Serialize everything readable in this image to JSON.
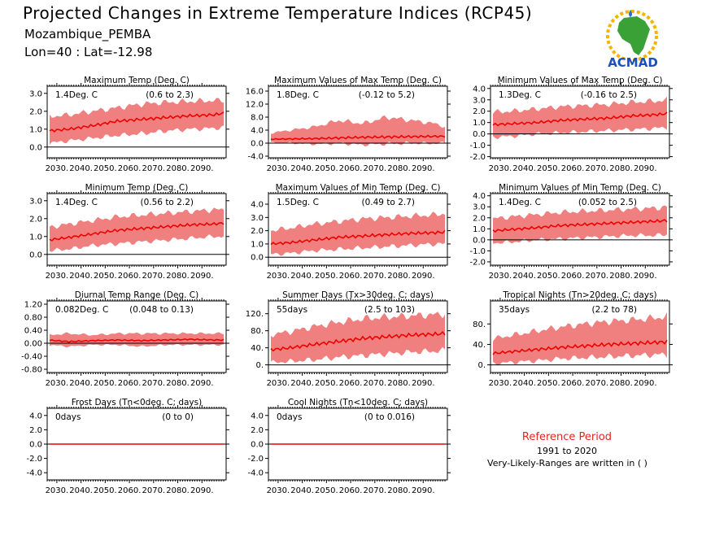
{
  "header": {
    "title": "Projected Changes in Extreme Temperature Indices (RCP45)",
    "region": "Mozambique_PEMBA",
    "coords": "Lon=40 : Lat=-12.98"
  },
  "logo": {
    "text": "ACMAD",
    "icon": "africa-map-logo"
  },
  "reference": {
    "title": "Reference Period",
    "years": "1991 to 2020",
    "note": "Very-Likely-Ranges are written in ( )"
  },
  "colors": {
    "band": "#f08080",
    "line": "#ee0000",
    "zero_line": "#000000"
  },
  "chart_data": [
    {
      "id": "txx",
      "type": "area",
      "title": "Maximum Temp (Deg. C)",
      "value_label": "1.4Deg. C",
      "range_label": "(0.6 to 2.3)",
      "x_ticks": [
        "2030.",
        "2040.",
        "2050.",
        "2060.",
        "2070.",
        "2080.",
        "2090."
      ],
      "xlim": [
        2026,
        2100
      ],
      "ylim": [
        -0.6,
        3.4
      ],
      "y_ticks": [
        "0.0",
        "1.0",
        "2.0",
        "3.0"
      ],
      "y_tick_values": [
        0,
        1,
        2,
        3
      ],
      "series": [
        {
          "role": "median",
          "x": [
            2026,
            2035,
            2045,
            2055,
            2065,
            2075,
            2085,
            2095,
            2099
          ],
          "y": [
            0.9,
            1.0,
            1.2,
            1.45,
            1.55,
            1.65,
            1.75,
            1.8,
            1.9
          ]
        },
        {
          "role": "lower",
          "x": [
            2026,
            2035,
            2045,
            2055,
            2065,
            2075,
            2085,
            2095,
            2099
          ],
          "y": [
            0.2,
            0.35,
            0.5,
            0.65,
            0.75,
            0.9,
            1.0,
            1.05,
            1.1
          ]
        },
        {
          "role": "upper",
          "x": [
            2026,
            2035,
            2045,
            2055,
            2065,
            2075,
            2085,
            2095,
            2099
          ],
          "y": [
            1.7,
            1.8,
            2.0,
            2.2,
            2.4,
            2.5,
            2.55,
            2.6,
            2.6
          ]
        }
      ]
    },
    {
      "id": "txx2",
      "type": "area",
      "title": "Maximum Values of Max Temp (Deg. C)",
      "value_label": "1.8Deg. C",
      "range_label": "(-0.12 to 5.2)",
      "x_ticks": [
        "2030.",
        "2040.",
        "2050.",
        "2060.",
        "2070.",
        "2080.",
        "2090."
      ],
      "xlim": [
        2026,
        2100
      ],
      "ylim": [
        -4.5,
        17.5
      ],
      "y_ticks": [
        "-4.0",
        "0.0",
        "4.0",
        "8.0",
        "12.0",
        "16.0"
      ],
      "y_tick_values": [
        -4,
        0,
        4,
        8,
        12,
        16
      ],
      "series": [
        {
          "role": "median",
          "x": [
            2026,
            2035,
            2045,
            2055,
            2065,
            2075,
            2085,
            2095,
            2099
          ],
          "y": [
            1.2,
            1.3,
            1.4,
            1.6,
            1.8,
            1.9,
            2.0,
            2.1,
            2.1
          ]
        },
        {
          "role": "lower",
          "x": [
            2026,
            2035,
            2045,
            2055,
            2065,
            2075,
            2085,
            2095,
            2099
          ],
          "y": [
            0.2,
            0.0,
            -0.3,
            0.0,
            -0.5,
            -0.2,
            0.0,
            -0.1,
            0.1
          ]
        },
        {
          "role": "upper",
          "x": [
            2026,
            2035,
            2045,
            2055,
            2065,
            2075,
            2085,
            2095,
            2099
          ],
          "y": [
            3.0,
            4.0,
            5.0,
            7.0,
            6.0,
            8.0,
            7.0,
            6.0,
            5.0
          ]
        }
      ]
    },
    {
      "id": "txn",
      "type": "area",
      "title": "Minimum Values of Max Temp (Deg. C)",
      "value_label": "1.3Deg. C",
      "range_label": "(-0.16 to 2.5)",
      "x_ticks": [
        "2030.",
        "2040.",
        "2050.",
        "2060.",
        "2070.",
        "2080.",
        "2090."
      ],
      "xlim": [
        2026,
        2100
      ],
      "ylim": [
        -2.1,
        4.2
      ],
      "y_ticks": [
        "-2.0",
        "-1.0",
        "0.0",
        "1.0",
        "2.0",
        "3.0",
        "4.0"
      ],
      "y_tick_values": [
        -2,
        -1,
        0,
        1,
        2,
        3,
        4
      ],
      "series": [
        {
          "role": "median",
          "x": [
            2026,
            2035,
            2045,
            2055,
            2065,
            2075,
            2085,
            2095,
            2099
          ],
          "y": [
            0.8,
            0.9,
            1.0,
            1.2,
            1.3,
            1.4,
            1.6,
            1.7,
            1.8
          ]
        },
        {
          "role": "lower",
          "x": [
            2026,
            2035,
            2045,
            2055,
            2065,
            2075,
            2085,
            2095,
            2099
          ],
          "y": [
            -0.3,
            -0.2,
            0.0,
            0.1,
            0.2,
            0.3,
            0.4,
            0.5,
            0.6
          ]
        },
        {
          "role": "upper",
          "x": [
            2026,
            2035,
            2045,
            2055,
            2065,
            2075,
            2085,
            2095,
            2099
          ],
          "y": [
            1.9,
            2.0,
            2.2,
            2.4,
            2.5,
            2.6,
            2.8,
            2.9,
            3.0
          ]
        }
      ]
    },
    {
      "id": "tnn",
      "type": "area",
      "title": "Minimum Temp (Deg. C)",
      "value_label": "1.4Deg. C",
      "range_label": "(0.56 to 2.2)",
      "x_ticks": [
        "2030.",
        "2040.",
        "2050.",
        "2060.",
        "2070.",
        "2080.",
        "2090."
      ],
      "xlim": [
        2026,
        2100
      ],
      "ylim": [
        -0.6,
        3.4
      ],
      "y_ticks": [
        "0.0",
        "1.0",
        "2.0",
        "3.0"
      ],
      "y_tick_values": [
        0,
        1,
        2,
        3
      ],
      "series": [
        {
          "role": "median",
          "x": [
            2026,
            2035,
            2045,
            2055,
            2065,
            2075,
            2085,
            2095,
            2099
          ],
          "y": [
            0.8,
            0.95,
            1.15,
            1.35,
            1.45,
            1.55,
            1.65,
            1.7,
            1.75
          ]
        },
        {
          "role": "lower",
          "x": [
            2026,
            2035,
            2045,
            2055,
            2065,
            2075,
            2085,
            2095,
            2099
          ],
          "y": [
            0.2,
            0.3,
            0.5,
            0.6,
            0.7,
            0.8,
            0.9,
            1.0,
            1.0
          ]
        },
        {
          "role": "upper",
          "x": [
            2026,
            2035,
            2045,
            2055,
            2065,
            2075,
            2085,
            2095,
            2099
          ],
          "y": [
            1.5,
            1.7,
            1.9,
            2.1,
            2.2,
            2.3,
            2.4,
            2.5,
            2.5
          ]
        }
      ]
    },
    {
      "id": "tnx",
      "type": "area",
      "title": "Maximum Values of Min Temp (Deg. C)",
      "value_label": "1.5Deg. C",
      "range_label": "(0.49 to 2.7)",
      "x_ticks": [
        "2030.",
        "2040.",
        "2050.",
        "2060.",
        "2070.",
        "2080.",
        "2090."
      ],
      "xlim": [
        2026,
        2100
      ],
      "ylim": [
        -0.6,
        4.8
      ],
      "y_ticks": [
        "0.0",
        "1.0",
        "2.0",
        "3.0",
        "4.0"
      ],
      "y_tick_values": [
        0,
        1,
        2,
        3,
        4
      ],
      "series": [
        {
          "role": "median",
          "x": [
            2026,
            2035,
            2045,
            2055,
            2065,
            2075,
            2085,
            2095,
            2099
          ],
          "y": [
            1.0,
            1.1,
            1.3,
            1.5,
            1.6,
            1.7,
            1.8,
            1.85,
            1.9
          ]
        },
        {
          "role": "lower",
          "x": [
            2026,
            2035,
            2045,
            2055,
            2065,
            2075,
            2085,
            2095,
            2099
          ],
          "y": [
            0.2,
            0.3,
            0.5,
            0.6,
            0.7,
            0.8,
            0.9,
            1.0,
            1.0
          ]
        },
        {
          "role": "upper",
          "x": [
            2026,
            2035,
            2045,
            2055,
            2065,
            2075,
            2085,
            2095,
            2099
          ],
          "y": [
            2.0,
            2.2,
            2.5,
            2.7,
            2.9,
            3.0,
            3.1,
            3.2,
            3.3
          ]
        }
      ]
    },
    {
      "id": "tnn2",
      "type": "area",
      "title": "Minimum Values of Min Temp (Deg. C)",
      "value_label": "1.4Deg. C",
      "range_label": "(0.052 to 2.5)",
      "x_ticks": [
        "2030.",
        "2040.",
        "2050.",
        "2060.",
        "2070.",
        "2080.",
        "2090."
      ],
      "xlim": [
        2026,
        2100
      ],
      "ylim": [
        -2.3,
        4.2
      ],
      "y_ticks": [
        "-2.0",
        "-1.0",
        "0.0",
        "1.0",
        "2.0",
        "3.0",
        "4.0"
      ],
      "y_tick_values": [
        -2,
        -1,
        0,
        1,
        2,
        3,
        4
      ],
      "series": [
        {
          "role": "median",
          "x": [
            2026,
            2035,
            2045,
            2055,
            2065,
            2075,
            2085,
            2095,
            2099
          ],
          "y": [
            0.8,
            0.95,
            1.1,
            1.3,
            1.4,
            1.5,
            1.6,
            1.7,
            1.75
          ]
        },
        {
          "role": "lower",
          "x": [
            2026,
            2035,
            2045,
            2055,
            2065,
            2075,
            2085,
            2095,
            2099
          ],
          "y": [
            -0.3,
            -0.2,
            0.0,
            0.1,
            0.2,
            0.3,
            0.4,
            0.4,
            0.5
          ]
        },
        {
          "role": "upper",
          "x": [
            2026,
            2035,
            2045,
            2055,
            2065,
            2075,
            2085,
            2095,
            2099
          ],
          "y": [
            1.9,
            2.1,
            2.3,
            2.5,
            2.6,
            2.7,
            2.8,
            2.9,
            3.0
          ]
        }
      ]
    },
    {
      "id": "dtr",
      "type": "area",
      "title": "Diurnal Temp Range (Deg. C)",
      "value_label": "0.082Deg. C",
      "range_label": "(0.048 to 0.13)",
      "x_ticks": [
        "2030.",
        "2040.",
        "2050.",
        "2060.",
        "2070.",
        "2080.",
        "2090."
      ],
      "xlim": [
        2026,
        2100
      ],
      "ylim": [
        -0.9,
        1.3
      ],
      "y_ticks": [
        "-0.80",
        "-0.40",
        "0.00",
        "0.40",
        "0.80",
        "1.20"
      ],
      "y_tick_values": [
        -0.8,
        -0.4,
        0,
        0.4,
        0.8,
        1.2
      ],
      "series": [
        {
          "role": "median",
          "x": [
            2026,
            2035,
            2045,
            2055,
            2065,
            2075,
            2085,
            2095,
            2099
          ],
          "y": [
            0.1,
            0.05,
            0.08,
            0.1,
            0.08,
            0.1,
            0.12,
            0.1,
            0.1
          ]
        },
        {
          "role": "lower",
          "x": [
            2026,
            2035,
            2045,
            2055,
            2065,
            2075,
            2085,
            2095,
            2099
          ],
          "y": [
            -0.05,
            -0.1,
            -0.05,
            -0.05,
            -0.1,
            -0.05,
            -0.05,
            -0.05,
            -0.05
          ]
        },
        {
          "role": "upper",
          "x": [
            2026,
            2035,
            2045,
            2055,
            2065,
            2075,
            2085,
            2095,
            2099
          ],
          "y": [
            0.25,
            0.3,
            0.25,
            0.3,
            0.3,
            0.3,
            0.3,
            0.3,
            0.3
          ]
        }
      ]
    },
    {
      "id": "su",
      "type": "area",
      "title": "Summer Days (Tx>30deg. C; days)",
      "value_label": "55days",
      "range_label": "(2.5 to 103)",
      "x_ticks": [
        "2030.",
        "2040.",
        "2050.",
        "2060.",
        "2070.",
        "2080.",
        "2090."
      ],
      "xlim": [
        2026,
        2100
      ],
      "ylim": [
        -18,
        150
      ],
      "y_ticks": [
        "0.",
        "40.",
        "80.",
        "120."
      ],
      "y_tick_values": [
        0,
        40,
        80,
        120
      ],
      "series": [
        {
          "role": "median",
          "x": [
            2026,
            2035,
            2045,
            2055,
            2065,
            2075,
            2085,
            2095,
            2099
          ],
          "y": [
            35,
            40,
            48,
            55,
            62,
            66,
            70,
            72,
            74
          ]
        },
        {
          "role": "lower",
          "x": [
            2026,
            2035,
            2045,
            2055,
            2065,
            2075,
            2085,
            2095,
            2099
          ],
          "y": [
            5,
            8,
            12,
            18,
            22,
            26,
            30,
            32,
            34
          ]
        },
        {
          "role": "upper",
          "x": [
            2026,
            2035,
            2045,
            2055,
            2065,
            2075,
            2085,
            2095,
            2099
          ],
          "y": [
            70,
            78,
            90,
            100,
            108,
            112,
            115,
            118,
            120
          ]
        }
      ]
    },
    {
      "id": "tr",
      "type": "area",
      "title": "Tropical Nights (Tn>20deg. C; days)",
      "value_label": "35days",
      "range_label": "(2.2 to 78)",
      "x_ticks": [
        "2030.",
        "2040.",
        "2050.",
        "2060.",
        "2070.",
        "2080.",
        "2090."
      ],
      "xlim": [
        2026,
        2100
      ],
      "ylim": [
        -15,
        125
      ],
      "y_ticks": [
        "0.",
        "40.",
        "80."
      ],
      "y_tick_values": [
        0,
        40,
        80
      ],
      "series": [
        {
          "role": "median",
          "x": [
            2026,
            2035,
            2045,
            2055,
            2065,
            2075,
            2085,
            2095,
            2099
          ],
          "y": [
            22,
            26,
            30,
            34,
            37,
            40,
            42,
            44,
            45
          ]
        },
        {
          "role": "lower",
          "x": [
            2026,
            2035,
            2045,
            2055,
            2065,
            2075,
            2085,
            2095,
            2099
          ],
          "y": [
            2,
            5,
            8,
            12,
            14,
            16,
            18,
            20,
            20
          ]
        },
        {
          "role": "upper",
          "x": [
            2026,
            2035,
            2045,
            2055,
            2065,
            2075,
            2085,
            2095,
            2099
          ],
          "y": [
            50,
            58,
            66,
            74,
            80,
            85,
            88,
            92,
            95
          ]
        }
      ]
    },
    {
      "id": "fd",
      "type": "area",
      "title": "Frost Days (Tn<0deg. C; days)",
      "value_label": "0days",
      "range_label": "(0 to 0)",
      "x_ticks": [
        "2030.",
        "2040.",
        "2050.",
        "2060.",
        "2070.",
        "2080.",
        "2090."
      ],
      "xlim": [
        2026,
        2100
      ],
      "ylim": [
        -5,
        5
      ],
      "y_ticks": [
        "-4.0",
        "-2.0",
        "0.0",
        "2.0",
        "4.0"
      ],
      "y_tick_values": [
        -4,
        -2,
        0,
        2,
        4
      ],
      "series": [
        {
          "role": "median",
          "x": [
            2026,
            2099
          ],
          "y": [
            0,
            0
          ]
        },
        {
          "role": "lower",
          "x": [
            2026,
            2099
          ],
          "y": [
            0,
            0
          ]
        },
        {
          "role": "upper",
          "x": [
            2026,
            2099
          ],
          "y": [
            0,
            0
          ]
        }
      ]
    },
    {
      "id": "tn10",
      "type": "area",
      "title": "Cool Nights (Tn<10deg. C; days)",
      "value_label": "0days",
      "range_label": "(0 to 0.016)",
      "x_ticks": [
        "2030.",
        "2040.",
        "2050.",
        "2060.",
        "2070.",
        "2080.",
        "2090."
      ],
      "xlim": [
        2026,
        2100
      ],
      "ylim": [
        -5,
        5
      ],
      "y_ticks": [
        "-4.0",
        "-2.0",
        "0.0",
        "2.0",
        "4.0"
      ],
      "y_tick_values": [
        -4,
        -2,
        0,
        2,
        4
      ],
      "series": [
        {
          "role": "median",
          "x": [
            2026,
            2099
          ],
          "y": [
            0,
            0
          ]
        },
        {
          "role": "lower",
          "x": [
            2026,
            2099
          ],
          "y": [
            0,
            0
          ]
        },
        {
          "role": "upper",
          "x": [
            2026,
            2099
          ],
          "y": [
            0,
            0.016
          ]
        }
      ]
    }
  ]
}
